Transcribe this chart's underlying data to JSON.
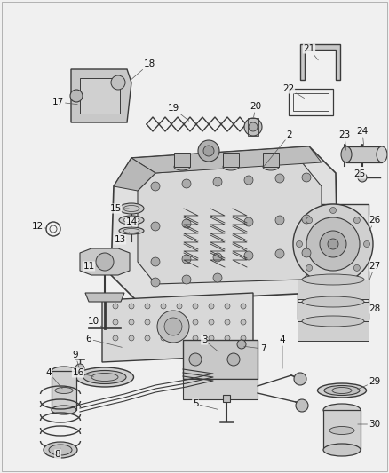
{
  "bg_color": "#f0f0f0",
  "line_color": "#3a3a3a",
  "text_color": "#111111",
  "fig_width": 4.38,
  "fig_height": 5.33,
  "dpi": 100,
  "border_color": "#888888",
  "gray_fill": "#c8c8c8",
  "light_gray": "#e0e0e0"
}
